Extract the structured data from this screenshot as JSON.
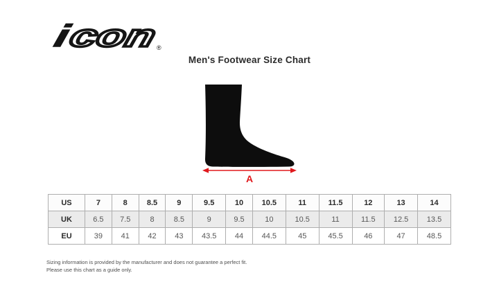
{
  "brand": {
    "logo_i": "i",
    "logo_rest": "con",
    "registered_mark": "®",
    "logo_color": "#151515"
  },
  "title": "Men's Footwear Size Chart",
  "diagram": {
    "measurement_label": "A",
    "arrow_color": "#e0191d",
    "foot_color": "#0d0d0d"
  },
  "size_table": {
    "rows": [
      {
        "label": "US",
        "values": [
          "7",
          "8",
          "8.5",
          "9",
          "9.5",
          "10",
          "10.5",
          "11",
          "11.5",
          "12",
          "13",
          "14"
        ]
      },
      {
        "label": "UK",
        "values": [
          "6.5",
          "7.5",
          "8",
          "8.5",
          "9",
          "9.5",
          "10",
          "10.5",
          "11",
          "11.5",
          "12.5",
          "13.5"
        ]
      },
      {
        "label": "EU",
        "values": [
          "39",
          "41",
          "42",
          "43",
          "43.5",
          "44",
          "44.5",
          "45",
          "45.5",
          "46",
          "47",
          "48.5"
        ]
      }
    ]
  },
  "footer": {
    "line1": "Sizing information is provided by the manufacturer and does not guarantee a perfect fit.",
    "line2": "Please use this chart as a guide only."
  },
  "chart_data": {
    "type": "table",
    "title": "Men's Footwear Size Chart",
    "row_headers": [
      "US",
      "UK",
      "EU"
    ],
    "series": [
      {
        "name": "US",
        "values": [
          7,
          8,
          8.5,
          9,
          9.5,
          10,
          10.5,
          11,
          11.5,
          12,
          13,
          14
        ]
      },
      {
        "name": "UK",
        "values": [
          6.5,
          7.5,
          8,
          8.5,
          9,
          9.5,
          10,
          10.5,
          11,
          11.5,
          12.5,
          13.5
        ]
      },
      {
        "name": "EU",
        "values": [
          39,
          41,
          42,
          43,
          43.5,
          44,
          44.5,
          45,
          45.5,
          46,
          47,
          48.5
        ]
      }
    ],
    "annotations": [
      "A = foot length measurement shown under foot silhouette"
    ],
    "layout": {
      "legend": "none",
      "grid": "table-borders"
    }
  }
}
